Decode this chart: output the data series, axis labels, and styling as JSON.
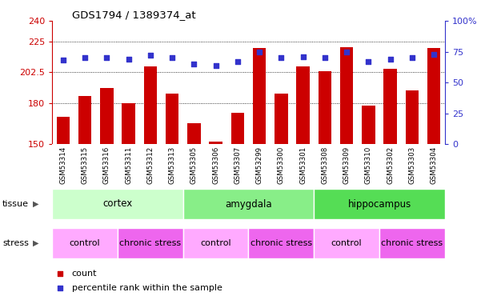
{
  "title": "GDS1794 / 1389374_at",
  "samples": [
    "GSM53314",
    "GSM53315",
    "GSM53316",
    "GSM53311",
    "GSM53312",
    "GSM53313",
    "GSM53305",
    "GSM53306",
    "GSM53307",
    "GSM53299",
    "GSM53300",
    "GSM53301",
    "GSM53308",
    "GSM53309",
    "GSM53310",
    "GSM53302",
    "GSM53303",
    "GSM53304"
  ],
  "counts": [
    170,
    185,
    191,
    180,
    207,
    187,
    165,
    152,
    173,
    220,
    187,
    207,
    203,
    221,
    178,
    205,
    189,
    220
  ],
  "percentiles": [
    68,
    70,
    70,
    69,
    72,
    70,
    65,
    64,
    67,
    75,
    70,
    71,
    70,
    75,
    67,
    69,
    70,
    73
  ],
  "tissues": [
    {
      "label": "cortex",
      "start": 0,
      "end": 6,
      "color": "#ccffcc"
    },
    {
      "label": "amygdala",
      "start": 6,
      "end": 12,
      "color": "#88ee88"
    },
    {
      "label": "hippocampus",
      "start": 12,
      "end": 18,
      "color": "#55dd55"
    }
  ],
  "stress_groups": [
    {
      "label": "control",
      "start": 0,
      "end": 3,
      "color": "#ffaaff"
    },
    {
      "label": "chronic stress",
      "start": 3,
      "end": 6,
      "color": "#ee66ee"
    },
    {
      "label": "control",
      "start": 6,
      "end": 9,
      "color": "#ffaaff"
    },
    {
      "label": "chronic stress",
      "start": 9,
      "end": 12,
      "color": "#ee66ee"
    },
    {
      "label": "control",
      "start": 12,
      "end": 15,
      "color": "#ffaaff"
    },
    {
      "label": "chronic stress",
      "start": 15,
      "end": 18,
      "color": "#ee66ee"
    }
  ],
  "ylim_left": [
    150,
    240
  ],
  "ylim_right": [
    0,
    100
  ],
  "yticks_left": [
    150,
    180,
    202.5,
    225,
    240
  ],
  "yticks_right": [
    0,
    25,
    50,
    75,
    100
  ],
  "bar_color": "#cc0000",
  "dot_color": "#3333cc",
  "bar_width": 0.6,
  "xtick_bg": "#dddddd",
  "legend_items": [
    {
      "label": "count",
      "color": "#cc0000"
    },
    {
      "label": "percentile rank within the sample",
      "color": "#3333cc"
    }
  ]
}
